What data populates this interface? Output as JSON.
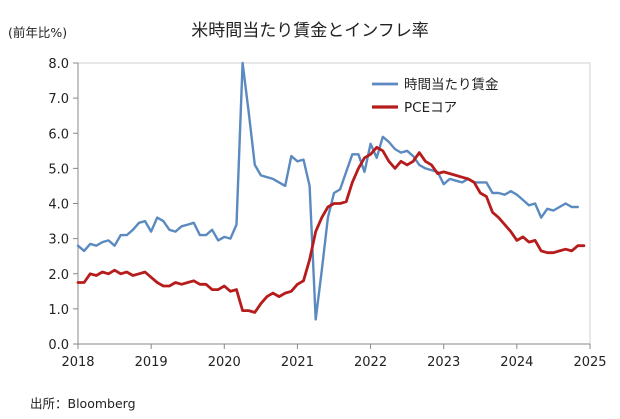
{
  "header": {
    "title": "米時間当たり賃金とインフレ率",
    "y_unit": "(前年比%)"
  },
  "footer": {
    "source": "出所：Bloomberg"
  },
  "colors": {
    "wages": "#5b8ac0",
    "pce": "#b71c1c",
    "axis": "#888888",
    "grid": "#d0d0d0"
  },
  "chart_data": {
    "type": "line",
    "title": "米時間当たり賃金とインフレ率",
    "ylabel": "(前年比%)",
    "xlabel": "",
    "ylim": [
      0,
      8
    ],
    "xlim": [
      2018,
      2025
    ],
    "grid": false,
    "legend_position": "top-right",
    "x_ticks": [
      "2018",
      "2019",
      "2020",
      "2021",
      "2022",
      "2023",
      "2024",
      "2025"
    ],
    "y_ticks": [
      "0.0",
      "1.0",
      "2.0",
      "3.0",
      "4.0",
      "5.0",
      "6.0",
      "7.0",
      "8.0"
    ],
    "series": [
      {
        "name": "時間当たり賃金",
        "color": "#5b8ac0",
        "x_start": "2018-01",
        "frequency": "monthly",
        "values": [
          2.8,
          2.65,
          2.85,
          2.8,
          2.9,
          2.95,
          2.8,
          3.1,
          3.1,
          3.25,
          3.45,
          3.5,
          3.2,
          3.6,
          3.5,
          3.25,
          3.2,
          3.35,
          3.4,
          3.45,
          3.1,
          3.1,
          3.25,
          2.95,
          3.05,
          3.0,
          3.4,
          8.0,
          6.6,
          5.1,
          4.8,
          4.75,
          4.7,
          4.6,
          4.5,
          5.35,
          5.2,
          5.25,
          4.5,
          0.7,
          2.1,
          3.6,
          4.3,
          4.4,
          4.9,
          5.4,
          5.4,
          4.9,
          5.7,
          5.3,
          5.9,
          5.75,
          5.55,
          5.45,
          5.5,
          5.35,
          5.1,
          5.0,
          4.95,
          4.9,
          4.55,
          4.7,
          4.65,
          4.6,
          4.7,
          4.6,
          4.6,
          4.6,
          4.3,
          4.3,
          4.25,
          4.35,
          4.25,
          4.1,
          3.95,
          4.0,
          3.6,
          3.85,
          3.8,
          3.9,
          4.0,
          3.9,
          3.9
        ]
      },
      {
        "name": "PCEコア",
        "color": "#b71c1c",
        "x_start": "2018-01",
        "frequency": "monthly",
        "values": [
          1.75,
          1.75,
          2.0,
          1.95,
          2.05,
          2.0,
          2.1,
          2.0,
          2.05,
          1.95,
          2.0,
          2.05,
          1.9,
          1.75,
          1.65,
          1.65,
          1.75,
          1.7,
          1.75,
          1.8,
          1.7,
          1.7,
          1.55,
          1.55,
          1.65,
          1.5,
          1.55,
          0.95,
          0.95,
          0.9,
          1.15,
          1.35,
          1.45,
          1.35,
          1.45,
          1.5,
          1.7,
          1.8,
          2.4,
          3.2,
          3.6,
          3.9,
          4.0,
          4.0,
          4.05,
          4.6,
          5.0,
          5.3,
          5.4,
          5.6,
          5.5,
          5.2,
          5.0,
          5.2,
          5.1,
          5.2,
          5.45,
          5.2,
          5.1,
          4.85,
          4.9,
          4.85,
          4.8,
          4.75,
          4.7,
          4.6,
          4.3,
          4.2,
          3.75,
          3.6,
          3.4,
          3.2,
          2.95,
          3.05,
          2.9,
          2.95,
          2.65,
          2.6,
          2.6,
          2.65,
          2.7,
          2.65,
          2.8,
          2.8
        ]
      }
    ]
  }
}
